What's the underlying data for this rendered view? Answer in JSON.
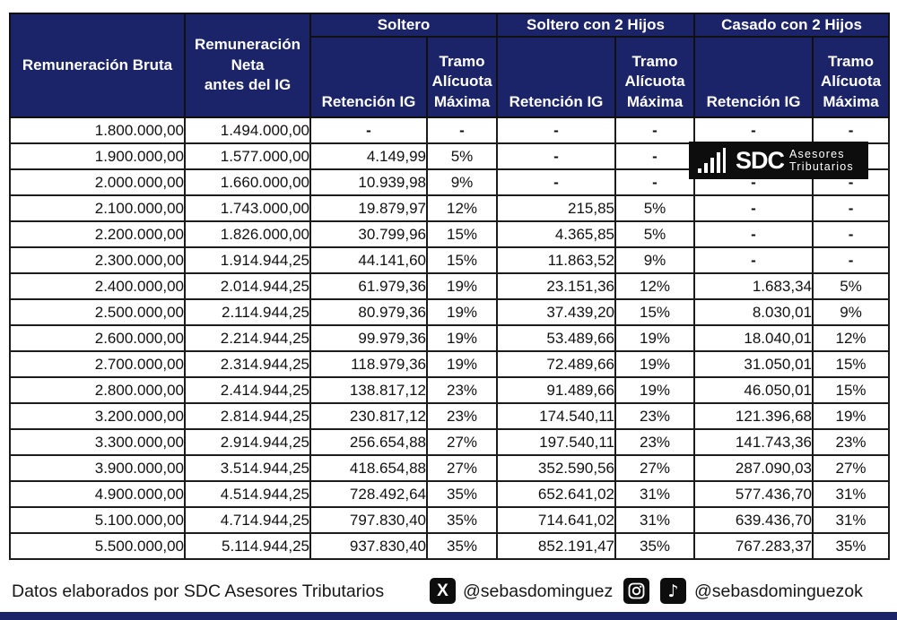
{
  "colors": {
    "header_navy": "#1b2468",
    "logo_black": "#0d0d0d",
    "border_black": "#1c1c1c"
  },
  "table": {
    "headers": {
      "bruta": "Remuneración Bruta",
      "neta_lines": [
        "Remuneración",
        "Neta",
        "antes del IG"
      ],
      "groups": [
        "Soltero",
        "Soltero con 2 Hijos",
        "Casado con 2 Hijos"
      ],
      "retencion": "Retención IG",
      "tramo": "Tramo Alícuota Máxima"
    }
  },
  "chart_data": {
    "type": "table",
    "columns": [
      "Remuneración Bruta",
      "Remuneración Neta antes del IG",
      "Soltero - Retención IG",
      "Soltero - Tramo Alícuota Máxima",
      "Soltero con 2 Hijos - Retención IG",
      "Soltero con 2 Hijos - Tramo Alícuota Máxima",
      "Casado con 2 Hijos - Retención IG",
      "Casado con 2 Hijos - Tramo Alícuota Máxima"
    ],
    "rows": [
      [
        "1.800.000,00",
        "1.494.000,00",
        "-",
        "-",
        "-",
        "-",
        "-",
        "-"
      ],
      [
        "1.900.000,00",
        "1.577.000,00",
        "4.149,99",
        "5%",
        "-",
        "-",
        "-",
        "-"
      ],
      [
        "2.000.000,00",
        "1.660.000,00",
        "10.939,98",
        "9%",
        "-",
        "-",
        "-",
        "-"
      ],
      [
        "2.100.000,00",
        "1.743.000,00",
        "19.879,97",
        "12%",
        "215,85",
        "5%",
        "-",
        "-"
      ],
      [
        "2.200.000,00",
        "1.826.000,00",
        "30.799,96",
        "15%",
        "4.365,85",
        "5%",
        "-",
        "-"
      ],
      [
        "2.300.000,00",
        "1.914.944,25",
        "44.141,60",
        "15%",
        "11.863,52",
        "9%",
        "-",
        "-"
      ],
      [
        "2.400.000,00",
        "2.014.944,25",
        "61.979,36",
        "19%",
        "23.151,36",
        "12%",
        "1.683,34",
        "5%"
      ],
      [
        "2.500.000,00",
        "2.114.944,25",
        "80.979,36",
        "19%",
        "37.439,20",
        "15%",
        "8.030,01",
        "9%"
      ],
      [
        "2.600.000,00",
        "2.214.944,25",
        "99.979,36",
        "19%",
        "53.489,66",
        "19%",
        "18.040,01",
        "12%"
      ],
      [
        "2.700.000,00",
        "2.314.944,25",
        "118.979,36",
        "19%",
        "72.489,66",
        "19%",
        "31.050,01",
        "15%"
      ],
      [
        "2.800.000,00",
        "2.414.944,25",
        "138.817,12",
        "23%",
        "91.489,66",
        "19%",
        "46.050,01",
        "15%"
      ],
      [
        "3.200.000,00",
        "2.814.944,25",
        "230.817,12",
        "23%",
        "174.540,11",
        "23%",
        "121.396,68",
        "19%"
      ],
      [
        "3.300.000,00",
        "2.914.944,25",
        "256.654,88",
        "27%",
        "197.540,11",
        "23%",
        "141.743,36",
        "23%"
      ],
      [
        "3.900.000,00",
        "3.514.944,25",
        "418.654,88",
        "27%",
        "352.590,56",
        "27%",
        "287.090,03",
        "27%"
      ],
      [
        "4.900.000,00",
        "4.514.944,25",
        "728.492,64",
        "35%",
        "652.641,02",
        "31%",
        "577.436,70",
        "31%"
      ],
      [
        "5.100.000,00",
        "4.714.944,25",
        "797.830,40",
        "35%",
        "714.641,02",
        "31%",
        "639.436,70",
        "31%"
      ],
      [
        "5.500.000,00",
        "5.114.944,25",
        "937.830,40",
        "35%",
        "852.191,47",
        "35%",
        "767.283,37",
        "35%"
      ]
    ]
  },
  "logo": {
    "brand": "SDC",
    "tagline_line1": "Asesores",
    "tagline_line2": "Tributarios"
  },
  "footer": {
    "credit": "Datos elaborados por SDC Asesores Tributarios",
    "x_icon_glyph": "X",
    "x_handle": "@sebasdominguez",
    "tiktok_icon_glyph": "♪",
    "ig_tiktok_handle": "@sebasdominguezok"
  }
}
